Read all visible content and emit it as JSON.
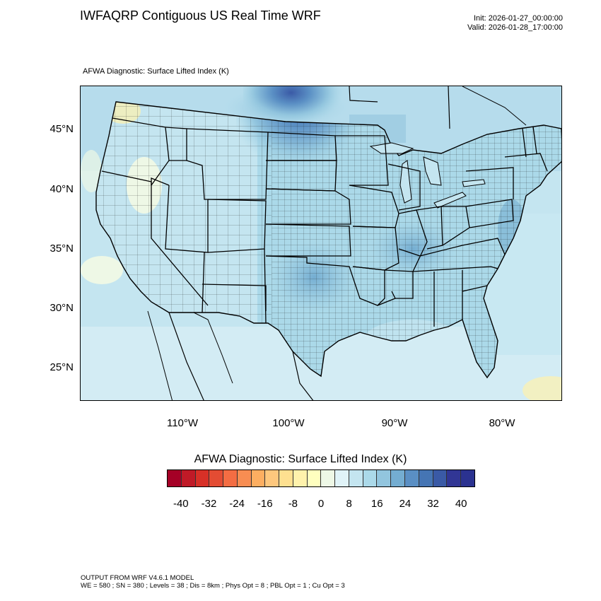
{
  "title": "IWFAQRP Contiguous US Real Time WRF",
  "init": "Init: 2026-01-27_00:00:00",
  "valid": "Valid: 2026-01-28_17:00:00",
  "subtitle": "AFWA Diagnostic: Surface Lifted Index   (K)",
  "lat_labels": [
    "45°N",
    "40°N",
    "35°N",
    "30°N",
    "25°N"
  ],
  "lon_labels": [
    "110°W",
    "100°W",
    "90°W",
    "80°W"
  ],
  "legend": {
    "title": "AFWA Diagnostic: Surface Lifted Index  (K)",
    "ticks": [
      "-40",
      "-32",
      "-24",
      "-16",
      "-8",
      "0",
      "8",
      "16",
      "24",
      "32",
      "40"
    ],
    "colors": [
      "#a50026",
      "#c01a27",
      "#d73027",
      "#e34c33",
      "#f46d43",
      "#f88d52",
      "#fdae61",
      "#fec77d",
      "#fee090",
      "#fff2ac",
      "#ffffbf",
      "#eef8e6",
      "#e0f3f8",
      "#c4e5f0",
      "#abd9e9",
      "#92c5de",
      "#74add1",
      "#5a8fc4",
      "#4575b4",
      "#3a5aa6",
      "#313695",
      "#2b3290"
    ]
  },
  "footer": {
    "line1": "OUTPUT FROM WRF V4.6.1 MODEL",
    "line2": "WE = 580 ; SN = 380 ; Levels = 38 ; Dis = 8km ; Phys Opt = 8 ; PBL Opt = 1 ; Cu Opt = 3"
  }
}
